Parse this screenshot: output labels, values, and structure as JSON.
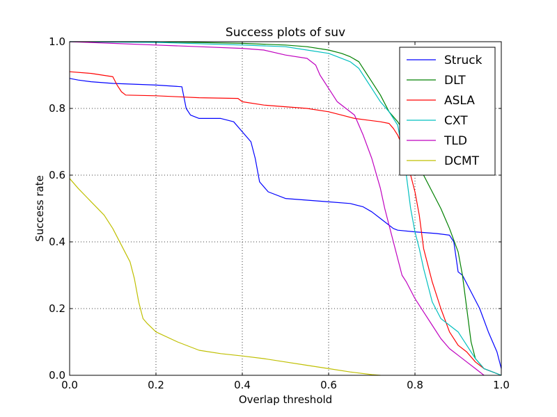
{
  "chart_data": {
    "type": "line",
    "title": "Success plots of suv",
    "xlabel": "Overlap threshold",
    "ylabel": "Success rate",
    "xlim": [
      0,
      1
    ],
    "ylim": [
      0,
      1
    ],
    "grid": true,
    "legend_position": "top-right",
    "xticks": [
      "0.0",
      "0.2",
      "0.4",
      "0.6",
      "0.8",
      "1.0"
    ],
    "yticks": [
      "0.0",
      "0.2",
      "0.4",
      "0.6",
      "0.8",
      "1.0"
    ],
    "series": [
      {
        "name": "Struck",
        "color": "#0000ff",
        "x": [
          0,
          0.02,
          0.05,
          0.1,
          0.2,
          0.26,
          0.27,
          0.28,
          0.3,
          0.35,
          0.38,
          0.4,
          0.42,
          0.43,
          0.44,
          0.46,
          0.5,
          0.55,
          0.6,
          0.65,
          0.68,
          0.7,
          0.72,
          0.74,
          0.75,
          0.76,
          0.8,
          0.85,
          0.88,
          0.89,
          0.9,
          0.91,
          0.93,
          0.95,
          0.97,
          0.99,
          1.0
        ],
        "y": [
          0.89,
          0.885,
          0.88,
          0.875,
          0.87,
          0.865,
          0.8,
          0.78,
          0.77,
          0.77,
          0.76,
          0.73,
          0.7,
          0.65,
          0.58,
          0.55,
          0.53,
          0.525,
          0.52,
          0.515,
          0.505,
          0.49,
          0.47,
          0.45,
          0.44,
          0.435,
          0.43,
          0.425,
          0.42,
          0.4,
          0.31,
          0.3,
          0.25,
          0.2,
          0.13,
          0.07,
          0.02
        ]
      },
      {
        "name": "DLT",
        "color": "#008000",
        "x": [
          0,
          0.2,
          0.4,
          0.5,
          0.55,
          0.6,
          0.63,
          0.65,
          0.67,
          0.68,
          0.69,
          0.7,
          0.72,
          0.74,
          0.76,
          0.78,
          0.8,
          0.82,
          0.84,
          0.86,
          0.88,
          0.9,
          0.91,
          0.92,
          0.93,
          0.94,
          0.96,
          0.98,
          1.0
        ],
        "y": [
          1.0,
          1.0,
          0.995,
          0.99,
          0.985,
          0.975,
          0.965,
          0.955,
          0.94,
          0.92,
          0.9,
          0.88,
          0.84,
          0.79,
          0.76,
          0.72,
          0.65,
          0.6,
          0.55,
          0.5,
          0.44,
          0.37,
          0.3,
          0.2,
          0.1,
          0.05,
          0.02,
          0.01,
          0.0
        ]
      },
      {
        "name": "ASLA",
        "color": "#ff0000",
        "x": [
          0,
          0.05,
          0.1,
          0.11,
          0.12,
          0.13,
          0.2,
          0.25,
          0.3,
          0.39,
          0.4,
          0.45,
          0.5,
          0.55,
          0.6,
          0.63,
          0.66,
          0.69,
          0.72,
          0.74,
          0.75,
          0.76,
          0.77,
          0.78,
          0.79,
          0.8,
          0.81,
          0.82,
          0.84,
          0.86,
          0.88,
          0.9,
          0.92,
          0.94,
          0.96,
          0.98,
          1.0
        ],
        "y": [
          0.91,
          0.905,
          0.895,
          0.87,
          0.85,
          0.84,
          0.838,
          0.835,
          0.832,
          0.83,
          0.82,
          0.81,
          0.805,
          0.8,
          0.79,
          0.78,
          0.77,
          0.765,
          0.76,
          0.755,
          0.74,
          0.72,
          0.69,
          0.65,
          0.6,
          0.55,
          0.48,
          0.38,
          0.28,
          0.2,
          0.13,
          0.09,
          0.07,
          0.04,
          0.02,
          0.01,
          0.0
        ]
      },
      {
        "name": "CXT",
        "color": "#00bfbf",
        "x": [
          0,
          0.2,
          0.4,
          0.5,
          0.55,
          0.6,
          0.62,
          0.65,
          0.67,
          0.68,
          0.7,
          0.72,
          0.74,
          0.76,
          0.77,
          0.78,
          0.79,
          0.8,
          0.81,
          0.82,
          0.83,
          0.84,
          0.86,
          0.88,
          0.9,
          0.92,
          0.94,
          0.96,
          0.98,
          1.0
        ],
        "y": [
          1.0,
          0.998,
          0.99,
          0.985,
          0.975,
          0.965,
          0.955,
          0.94,
          0.92,
          0.9,
          0.86,
          0.82,
          0.79,
          0.75,
          0.68,
          0.6,
          0.5,
          0.43,
          0.38,
          0.32,
          0.27,
          0.22,
          0.17,
          0.15,
          0.13,
          0.09,
          0.05,
          0.02,
          0.01,
          0.0
        ]
      },
      {
        "name": "TLD",
        "color": "#bf00bf",
        "x": [
          0,
          0.1,
          0.2,
          0.3,
          0.4,
          0.45,
          0.5,
          0.55,
          0.57,
          0.58,
          0.6,
          0.62,
          0.64,
          0.66,
          0.68,
          0.7,
          0.72,
          0.73,
          0.74,
          0.75,
          0.76,
          0.77,
          0.78,
          0.8,
          0.82,
          0.84,
          0.86,
          0.88,
          0.9,
          0.92,
          0.94,
          0.96
        ],
        "y": [
          1.0,
          0.995,
          0.99,
          0.985,
          0.98,
          0.975,
          0.96,
          0.95,
          0.93,
          0.9,
          0.86,
          0.82,
          0.8,
          0.78,
          0.72,
          0.65,
          0.56,
          0.5,
          0.45,
          0.4,
          0.35,
          0.3,
          0.28,
          0.23,
          0.19,
          0.15,
          0.11,
          0.08,
          0.06,
          0.04,
          0.02,
          0.0
        ]
      },
      {
        "name": "DCMT",
        "color": "#bfbf00",
        "x": [
          0,
          0.02,
          0.05,
          0.08,
          0.1,
          0.12,
          0.14,
          0.15,
          0.16,
          0.17,
          0.18,
          0.2,
          0.25,
          0.3,
          0.35,
          0.4,
          0.45,
          0.5,
          0.55,
          0.6,
          0.65,
          0.7,
          0.72
        ],
        "y": [
          0.59,
          0.56,
          0.52,
          0.48,
          0.44,
          0.39,
          0.34,
          0.29,
          0.22,
          0.17,
          0.155,
          0.13,
          0.1,
          0.075,
          0.065,
          0.058,
          0.05,
          0.04,
          0.03,
          0.02,
          0.01,
          0.002,
          0.0
        ]
      }
    ]
  }
}
